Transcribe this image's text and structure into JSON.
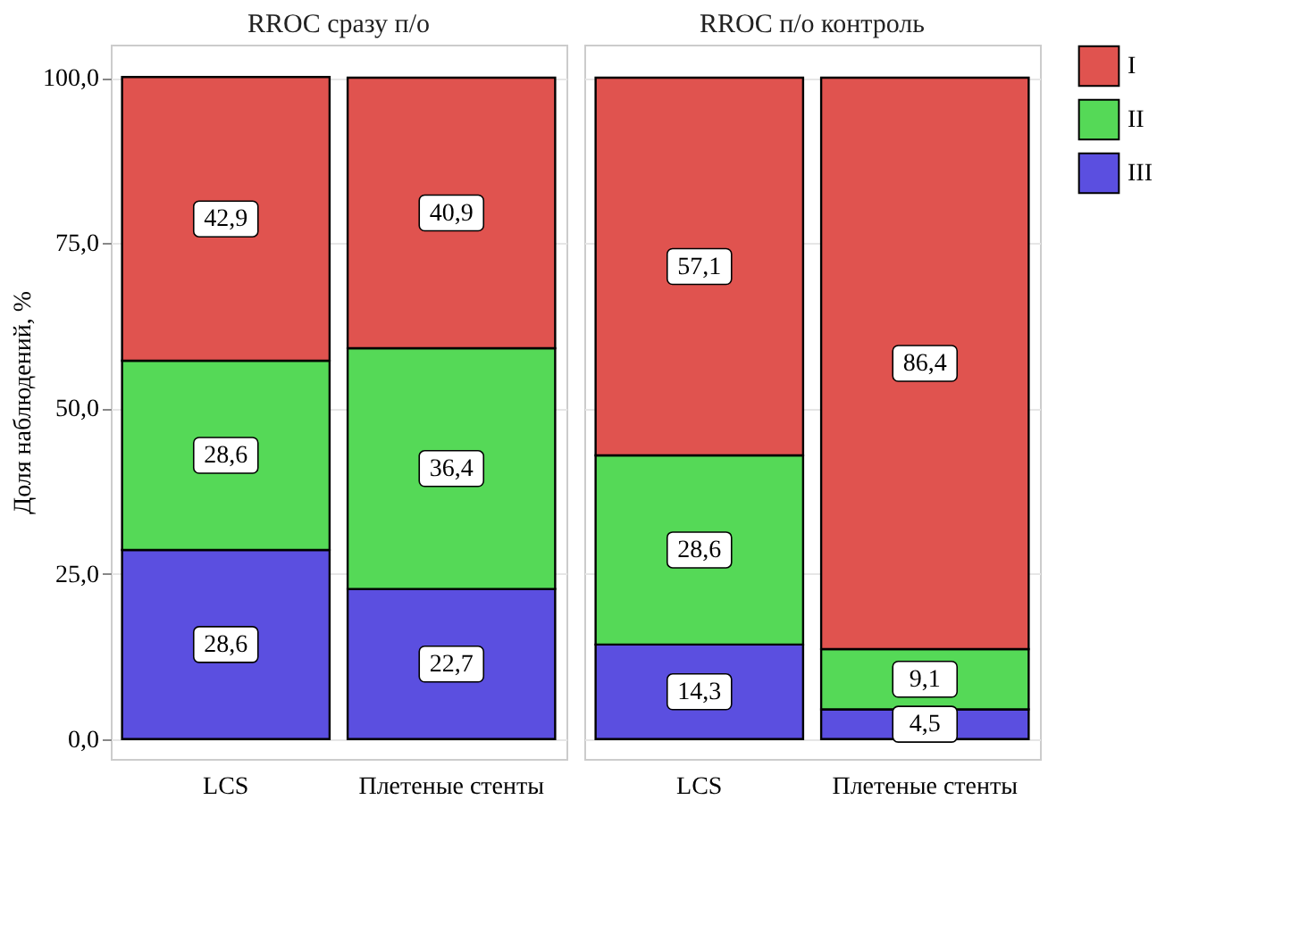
{
  "chart_data": [
    {
      "type": "bar",
      "stacked": true,
      "title": "RROC сразу п/о",
      "ylabel": "Доля наблюдений, %",
      "categories": [
        "LCS",
        "Плетеные стенты"
      ],
      "series": [
        {
          "name": "III",
          "color": "#5b4fe0",
          "values": [
            28.6,
            22.7
          ],
          "value_labels": [
            "28,6",
            "22,7"
          ]
        },
        {
          "name": "II",
          "color": "#55d957",
          "values": [
            28.6,
            36.4
          ],
          "value_labels": [
            "28,6",
            "36,4"
          ]
        },
        {
          "name": "I",
          "color": "#e0534f",
          "values": [
            42.9,
            40.9
          ],
          "value_labels": [
            "42,9",
            "40,9"
          ]
        }
      ],
      "ylim": [
        -3,
        105
      ],
      "yticks": [
        {
          "value": 0,
          "label": "0,0"
        },
        {
          "value": 25,
          "label": "25,0"
        },
        {
          "value": 50,
          "label": "50,0"
        },
        {
          "value": 75,
          "label": "75,0"
        },
        {
          "value": 100,
          "label": "100,0"
        }
      ],
      "grid": true,
      "legend": "right"
    },
    {
      "type": "bar",
      "stacked": true,
      "title": "RROC  п/о  контроль",
      "categories": [
        "LCS",
        "Плетеные стенты"
      ],
      "series": [
        {
          "color": "#5b4fe0",
          "values": [
            14.3,
            4.5
          ],
          "value_labels": [
            "14,3",
            "4,5"
          ]
        },
        {
          "color": "#55d957",
          "values": [
            28.6,
            9.1
          ],
          "value_labels": [
            "28,6",
            "9,1"
          ]
        },
        {
          "color": "#e0534f",
          "values": [
            57.1,
            86.4
          ],
          "value_labels": [
            "57,1",
            "86,4"
          ]
        }
      ],
      "ylim": [
        -3,
        105
      ],
      "yticks": [
        {
          "value": 0,
          "label": null
        },
        {
          "value": 25,
          "label": null
        },
        {
          "value": 50,
          "label": null
        },
        {
          "value": 75,
          "label": null
        },
        {
          "value": 100,
          "label": null
        }
      ],
      "grid": true,
      "tick_labels": "x"
    }
  ]
}
